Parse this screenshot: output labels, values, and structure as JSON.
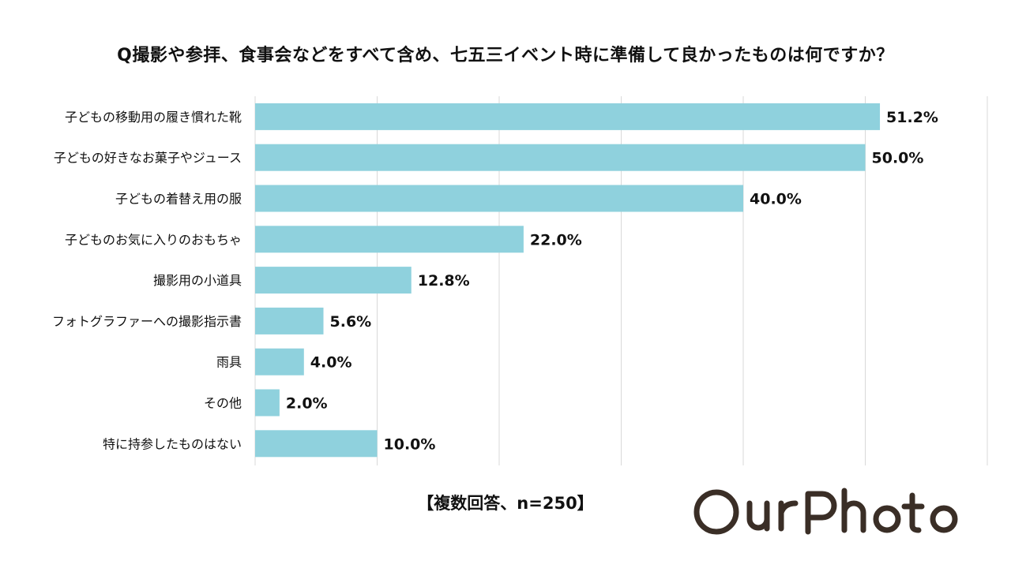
{
  "chart_data": {
    "type": "bar",
    "orientation": "horizontal",
    "title": "Q撮影や参拝、食事会などをすべて含め、七五三イベント時に準備して良かったものは何ですか？",
    "categories": [
      "子どもの移動用の履き慣れた靴",
      "子どもの好きなお菓子やジュース",
      "子どもの着替え用の服",
      "子どものお気に入りのおもちゃ",
      "撮影用の小道具",
      "フォトグラファーへの撮影指示書",
      "雨具",
      "その他",
      "特に持参したものはない"
    ],
    "values": [
      51.2,
      50.0,
      40.0,
      22.0,
      12.8,
      5.6,
      4.0,
      2.0,
      10.0
    ],
    "value_labels": [
      "51.2%",
      "50.0%",
      "40.0%",
      "22.0%",
      "12.8%",
      "5.6%",
      "4.0%",
      "2.0%",
      "10.0%"
    ],
    "xlim": [
      0,
      60
    ],
    "grid": true,
    "bar_color": "#8fd1dd",
    "note": "【複数回答、n=250】"
  },
  "brand": {
    "logo_text": "OurPhoto",
    "logo_color": "#3a2e26"
  }
}
